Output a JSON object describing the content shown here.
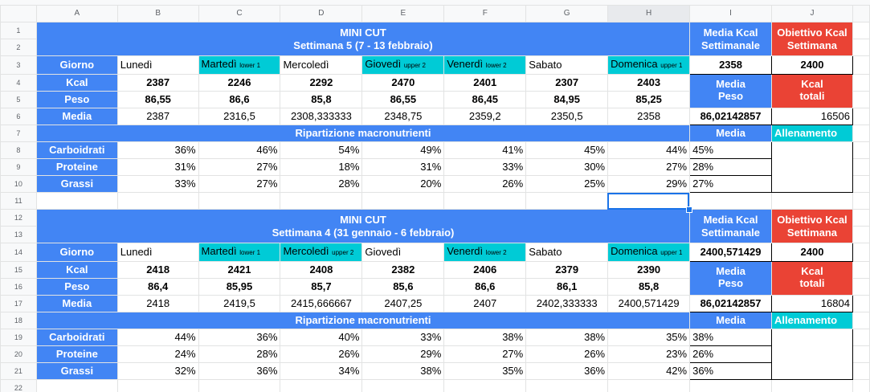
{
  "columns": [
    "A",
    "B",
    "C",
    "D",
    "E",
    "F",
    "G",
    "H",
    "I",
    "J"
  ],
  "rows": [
    "1",
    "2",
    "3",
    "4",
    "5",
    "6",
    "7",
    "8",
    "9",
    "10",
    "11",
    "12",
    "13",
    "14",
    "15",
    "16",
    "17",
    "18",
    "19",
    "20",
    "21",
    "22"
  ],
  "headers": {
    "media_kcal_line1": "Media Kcal",
    "media_kcal_line2": "Settimanale",
    "obiettivo_line1": "Obiettivo Kcal",
    "obiettivo_line2": "Settimana",
    "media_peso_line1": "Media",
    "media_peso_line2": "Peso",
    "kcal_tot_line1": "Kcal",
    "kcal_tot_line2": "totali",
    "ripartizione": "Ripartizione macronutrienti",
    "media": "Media",
    "allenamento": "Allenamento",
    "giorno": "Giorno",
    "kcal": "Kcal",
    "peso": "Peso",
    "media_row": "Media",
    "carbo": "Carboidrati",
    "prot": "Proteine",
    "grassi": "Grassi"
  },
  "weeks": [
    {
      "title": "MINI CUT",
      "subtitle": "Settimana 5 (7 - 13 febbraio)",
      "days": [
        {
          "name": "Lunedì",
          "tag": ""
        },
        {
          "name": "Martedì",
          "tag": "lower 1"
        },
        {
          "name": "Mercoledì",
          "tag": ""
        },
        {
          "name": "Giovedì",
          "tag": "upper 2"
        },
        {
          "name": "Venerdì",
          "tag": "lower 2"
        },
        {
          "name": "Sabato",
          "tag": ""
        },
        {
          "name": "Domenica",
          "tag": "upper 1"
        }
      ],
      "kcal": [
        "2387",
        "2246",
        "2292",
        "2470",
        "2401",
        "2307",
        "2403"
      ],
      "peso": [
        "86,55",
        "86,6",
        "85,8",
        "86,55",
        "86,45",
        "84,95",
        "85,25"
      ],
      "media": [
        "2387",
        "2316,5",
        "2308,333333",
        "2348,75",
        "2359,2",
        "2350,5",
        "2358"
      ],
      "media_kcal": "2358",
      "obiettivo": "2400",
      "media_peso": "86,02142857",
      "kcal_totali": "16506",
      "carbo": [
        "36%",
        "46%",
        "54%",
        "49%",
        "41%",
        "45%",
        "44%"
      ],
      "prot": [
        "31%",
        "27%",
        "18%",
        "31%",
        "33%",
        "30%",
        "27%"
      ],
      "grassi": [
        "33%",
        "27%",
        "28%",
        "20%",
        "26%",
        "25%",
        "29%"
      ],
      "macro_media": [
        "45%",
        "28%",
        "27%"
      ]
    },
    {
      "title": "MINI CUT",
      "subtitle": "Settimana 4 (31 gennaio - 6 febbraio)",
      "days": [
        {
          "name": "Lunedì",
          "tag": ""
        },
        {
          "name": "Martedì",
          "tag": "lower 1"
        },
        {
          "name": "Mercoledì",
          "tag": "upper 2"
        },
        {
          "name": "Giovedì",
          "tag": ""
        },
        {
          "name": "Venerdì",
          "tag": "lower 2"
        },
        {
          "name": "Sabato",
          "tag": ""
        },
        {
          "name": "Domenica",
          "tag": "upper 1"
        }
      ],
      "kcal": [
        "2418",
        "2421",
        "2408",
        "2382",
        "2406",
        "2379",
        "2390"
      ],
      "peso": [
        "86,4",
        "85,95",
        "85,7",
        "85,6",
        "86,6",
        "86,1",
        "85,8"
      ],
      "media": [
        "2418",
        "2419,5",
        "2415,666667",
        "2407,25",
        "2407",
        "2402,333333",
        "2400,571429"
      ],
      "media_kcal": "2400,571429",
      "obiettivo": "2400",
      "media_peso": "86,02142857",
      "kcal_totali": "16804",
      "carbo": [
        "44%",
        "36%",
        "40%",
        "33%",
        "38%",
        "38%",
        "35%"
      ],
      "prot": [
        "24%",
        "28%",
        "26%",
        "29%",
        "27%",
        "26%",
        "23%"
      ],
      "grassi": [
        "32%",
        "36%",
        "34%",
        "38%",
        "35%",
        "36%",
        "42%"
      ],
      "macro_media": [
        "38%",
        "26%",
        "36%"
      ]
    }
  ]
}
